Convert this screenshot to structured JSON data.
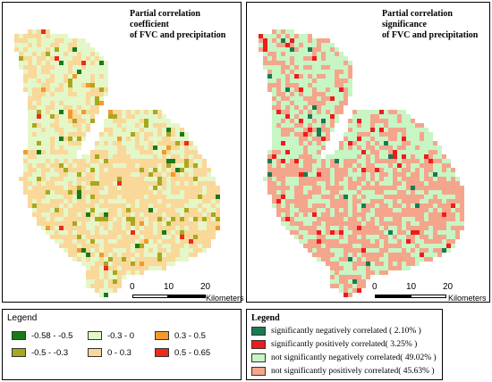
{
  "left_panel": {
    "title_line1": "Partial correlation coefficient",
    "title_line2": "of FVC and precipitation",
    "scale": {
      "labels": [
        "0",
        "10",
        "20"
      ],
      "unit": "Kilometers"
    },
    "legend": {
      "title": "Legend",
      "items": [
        {
          "label": "-0.58 - -0.5",
          "color": "#1a7a1a"
        },
        {
          "label": "-0.5 - -0.3",
          "color": "#a8a81e"
        },
        {
          "label": "-0.3 - 0",
          "color": "#e4f7c8"
        },
        {
          "label": "0 - 0.3",
          "color": "#f9d89a"
        },
        {
          "label": "0.3 - 0.5",
          "color": "#f39a2a"
        },
        {
          "label": "0.5 - 0.65",
          "color": "#ee2a1a"
        }
      ]
    }
  },
  "right_panel": {
    "title_line1": "Partial correlation significance",
    "title_line2": "of FVC and precipitation",
    "scale": {
      "labels": [
        "0",
        "10",
        "20"
      ],
      "unit": "Kilometers"
    },
    "legend": {
      "title": "Legend",
      "items": [
        {
          "label": "significantly negatively correlated ( 2.10% )",
          "color": "#1a7a52"
        },
        {
          "label": "significantly positively correlated( 3.25% )",
          "color": "#ee1c1c"
        },
        {
          "label": "not significantly negatively correlated( 49.02% )",
          "color": "#c8f5c4"
        },
        {
          "label": "not significantly positively correlated( 45.63% )",
          "color": "#f4a58c"
        }
      ]
    }
  }
}
